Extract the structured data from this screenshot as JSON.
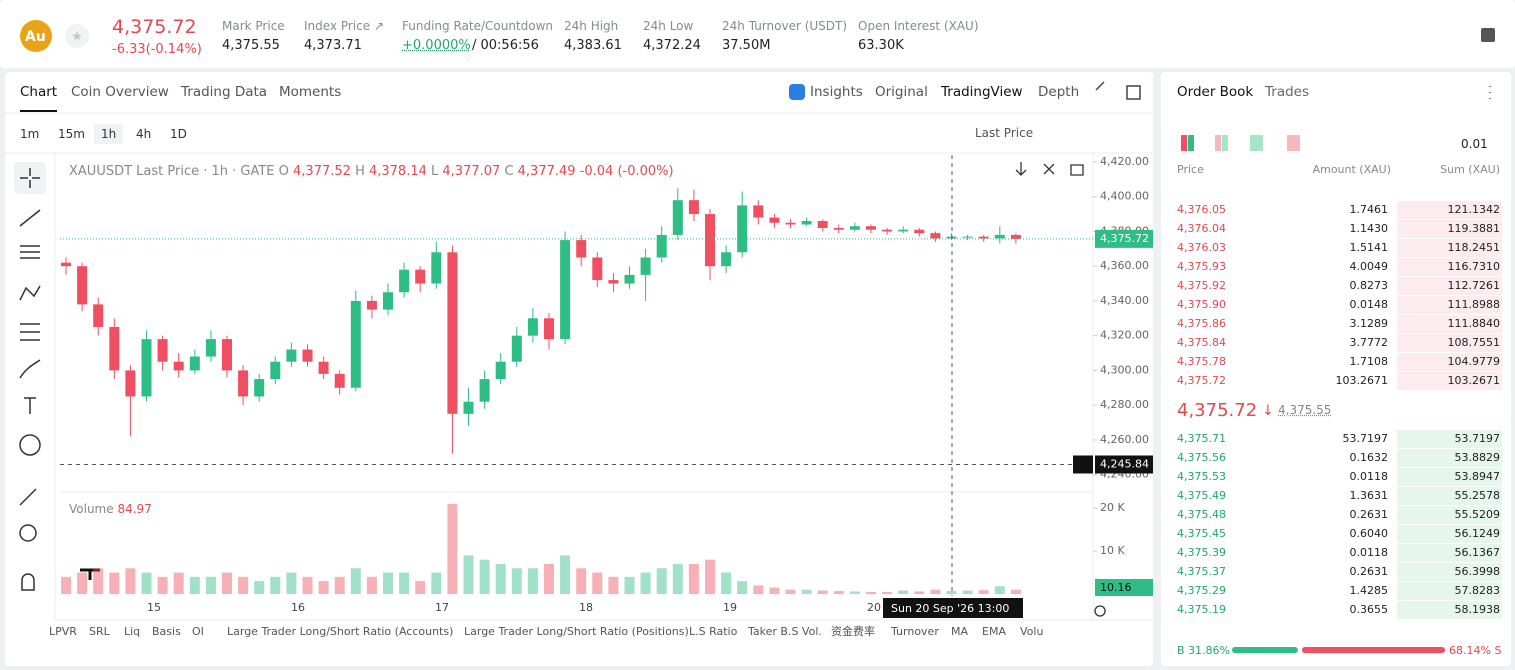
{
  "header": {
    "logo": "Au",
    "price": "4,375.72",
    "change": "-6.33(-0.14%)",
    "stats": [
      {
        "label": "Mark Price",
        "value": "4,375.55"
      },
      {
        "label": "Index Price ↗",
        "value": "4,373.71"
      },
      {
        "label": "Funding Rate/Countdown",
        "value": "+0.0000%",
        "countdown": "/ 00:56:56"
      },
      {
        "label": "24h High",
        "value": "4,383.61"
      },
      {
        "label": "24h Low",
        "value": "4,372.24"
      },
      {
        "label": "24h Turnover (USDT)",
        "value": "37.50M"
      },
      {
        "label": "Open Interest (XAU)",
        "value": "63.30K"
      }
    ]
  },
  "tabs": [
    "Chart",
    "Coin Overview",
    "Trading Data",
    "Moments"
  ],
  "views": [
    "Insights",
    "Original",
    "TradingView",
    "Depth"
  ],
  "intervals": [
    "1m",
    "15m",
    "1h",
    "4h",
    "1D"
  ],
  "price_source": "Last Price",
  "chart_data": {
    "type": "candlestick",
    "title": "XAUUSDT Last Price · 1h · GATE",
    "legend": {
      "o_label": "O",
      "o": "4,377.52",
      "h_label": "H",
      "h": "4,378.14",
      "l_label": "L",
      "l": "4,377.07",
      "c_label": "C",
      "c": "4,377.49",
      "change": "-0.04 (-0.00%)"
    },
    "up_color": "#2ebd85",
    "down_color": "#ef4f60",
    "candles": [
      [
        4362,
        4365,
        4355,
        4360
      ],
      [
        4360,
        4362,
        4334,
        4338
      ],
      [
        4338,
        4342,
        4320,
        4325
      ],
      [
        4325,
        4330,
        4295,
        4300
      ],
      [
        4300,
        4303,
        4262,
        4285
      ],
      [
        4285,
        4323,
        4282,
        4318
      ],
      [
        4318,
        4320,
        4300,
        4305
      ],
      [
        4305,
        4310,
        4296,
        4300
      ],
      [
        4300,
        4312,
        4298,
        4308
      ],
      [
        4308,
        4323,
        4305,
        4318
      ],
      [
        4318,
        4320,
        4296,
        4300
      ],
      [
        4300,
        4303,
        4280,
        4285
      ],
      [
        4285,
        4298,
        4282,
        4295
      ],
      [
        4295,
        4308,
        4292,
        4305
      ],
      [
        4305,
        4316,
        4302,
        4312
      ],
      [
        4312,
        4315,
        4302,
        4305
      ],
      [
        4305,
        4308,
        4295,
        4298
      ],
      [
        4298,
        4300,
        4286,
        4290
      ],
      [
        4290,
        4346,
        4288,
        4340
      ],
      [
        4340,
        4343,
        4330,
        4335
      ],
      [
        4335,
        4350,
        4332,
        4345
      ],
      [
        4345,
        4362,
        4342,
        4358
      ],
      [
        4358,
        4360,
        4345,
        4350
      ],
      [
        4350,
        4374,
        4347,
        4368
      ],
      [
        4368,
        4372,
        4252,
        4275
      ],
      [
        4275,
        4290,
        4268,
        4282
      ],
      [
        4282,
        4300,
        4278,
        4295
      ],
      [
        4295,
        4310,
        4292,
        4305
      ],
      [
        4305,
        4325,
        4302,
        4320
      ],
      [
        4320,
        4336,
        4316,
        4330
      ],
      [
        4330,
        4333,
        4312,
        4318
      ],
      [
        4318,
        4380,
        4315,
        4375
      ],
      [
        4375,
        4378,
        4360,
        4365
      ],
      [
        4365,
        4368,
        4348,
        4352
      ],
      [
        4352,
        4356,
        4345,
        4350
      ],
      [
        4350,
        4360,
        4347,
        4355
      ],
      [
        4355,
        4370,
        4340,
        4365
      ],
      [
        4365,
        4383,
        4362,
        4378
      ],
      [
        4378,
        4405,
        4375,
        4398
      ],
      [
        4398,
        4404,
        4386,
        4390
      ],
      [
        4390,
        4393,
        4352,
        4360
      ],
      [
        4360,
        4372,
        4356,
        4368
      ],
      [
        4368,
        4403,
        4365,
        4395
      ],
      [
        4395,
        4398,
        4384,
        4388
      ],
      [
        4388,
        4390,
        4382,
        4385
      ],
      [
        4385,
        4387,
        4382,
        4384
      ],
      [
        4384,
        4388,
        4383,
        4386
      ],
      [
        4386,
        4387,
        4380,
        4382
      ],
      [
        4382,
        4384,
        4379,
        4381
      ],
      [
        4381,
        4385,
        4380,
        4383
      ],
      [
        4383,
        4384,
        4379,
        4381
      ],
      [
        4381,
        4382,
        4378,
        4380
      ],
      [
        4380,
        4383,
        4379,
        4381
      ],
      [
        4381,
        4382,
        4377,
        4379
      ],
      [
        4379,
        4380,
        4374,
        4376
      ],
      [
        4376,
        4379,
        4375,
        4377
      ],
      [
        4377,
        4378,
        4375,
        4377
      ],
      [
        4377,
        4378,
        4374,
        4376
      ],
      [
        4376,
        4383,
        4373,
        4378
      ],
      [
        4378,
        4379,
        4373,
        4375.72
      ]
    ],
    "volume": [
      4,
      5,
      6,
      5,
      6,
      5,
      4,
      5,
      4,
      4,
      5,
      4,
      3,
      4,
      5,
      4,
      3,
      4,
      6,
      4,
      5,
      5,
      3,
      5,
      21,
      9,
      8,
      7,
      6,
      6,
      7,
      9,
      6,
      5,
      4,
      4,
      5,
      6,
      7,
      7,
      8,
      5,
      3,
      2,
      1.5,
      1,
      1,
      0.8,
      0.7,
      0.6,
      0.5,
      0.5,
      0.8,
      0.6,
      1,
      0.7,
      0.8,
      0.9,
      1.8,
      1
    ],
    "ylim": [
      4230,
      4424
    ],
    "yticks": [
      {
        "value": 4420,
        "label": "4,420.00"
      },
      {
        "value": 4400,
        "label": "4,400.00"
      },
      {
        "value": 4380,
        "label": "4,380.00"
      },
      {
        "value": 4360,
        "label": "4,360.00"
      },
      {
        "value": 4340,
        "label": "4,340.00"
      },
      {
        "value": 4320,
        "label": "4,320.00"
      },
      {
        "value": 4300,
        "label": "4,300.00"
      },
      {
        "value": 4280,
        "label": "4,280.00"
      },
      {
        "value": 4260,
        "label": "4,260.00"
      },
      {
        "value": 4240,
        "label": "4,240.00"
      }
    ],
    "last_price": {
      "value": 4375.72,
      "label": "4,375.72"
    },
    "crosshair": {
      "value": 4245.84,
      "label": "4,245.84",
      "time": "Sun 20 Sep '26 13:00"
    },
    "volume_title": "Volume",
    "volume_value": "84.97",
    "volume_last": "10.16",
    "volume_ylim": [
      0,
      22.6
    ],
    "volume_yticks": [
      {
        "value": 20,
        "label": "20 K"
      },
      {
        "value": 10,
        "label": "10 K"
      }
    ],
    "x_labels": [
      "15",
      "16",
      "17",
      "18",
      "19",
      "20"
    ]
  },
  "indicators": [
    "LPVR",
    "SRL",
    "Liq",
    "Basis",
    "OI",
    "Large Trader Long/Short Ratio (Accounts)",
    "Large Trader Long/Short Ratio (Positions)",
    "L.S Ratio",
    "Taker B.S Vol.",
    "资金费率",
    "Turnover",
    "MA",
    "EMA",
    "Volu"
  ],
  "order_book": {
    "tabs": [
      "Order Book",
      "Trades"
    ],
    "precision": "0.01",
    "columns": [
      "Price",
      "Amount (XAU)",
      "Sum (XAU)"
    ],
    "asks": [
      [
        "4,376.05",
        "1.7461",
        "121.1342"
      ],
      [
        "4,376.04",
        "1.1430",
        "119.3881"
      ],
      [
        "4,376.03",
        "1.5141",
        "118.2451"
      ],
      [
        "4,375.93",
        "4.0049",
        "116.7310"
      ],
      [
        "4,375.92",
        "0.8273",
        "112.7261"
      ],
      [
        "4,375.90",
        "0.0148",
        "111.8988"
      ],
      [
        "4,375.86",
        "3.1289",
        "111.8840"
      ],
      [
        "4,375.84",
        "3.7772",
        "108.7551"
      ],
      [
        "4,375.78",
        "1.7108",
        "104.9779"
      ],
      [
        "4,375.72",
        "103.2671",
        "103.2671"
      ]
    ],
    "last": "4,375.72",
    "mark": "4,375.55",
    "bids": [
      [
        "4,375.71",
        "53.7197",
        "53.7197"
      ],
      [
        "4,375.56",
        "0.1632",
        "53.8829"
      ],
      [
        "4,375.53",
        "0.0118",
        "53.8947"
      ],
      [
        "4,375.49",
        "1.3631",
        "55.2578"
      ],
      [
        "4,375.48",
        "0.2631",
        "55.5209"
      ],
      [
        "4,375.45",
        "0.6040",
        "56.1249"
      ],
      [
        "4,375.39",
        "0.0118",
        "56.1367"
      ],
      [
        "4,375.37",
        "0.2631",
        "56.3998"
      ],
      [
        "4,375.29",
        "1.4285",
        "57.8283"
      ],
      [
        "4,375.19",
        "0.3655",
        "58.1938"
      ]
    ],
    "buy": 31.86,
    "sell": 68.14,
    "buy_label": "B 31.86%",
    "sell_label": "68.14% S"
  }
}
